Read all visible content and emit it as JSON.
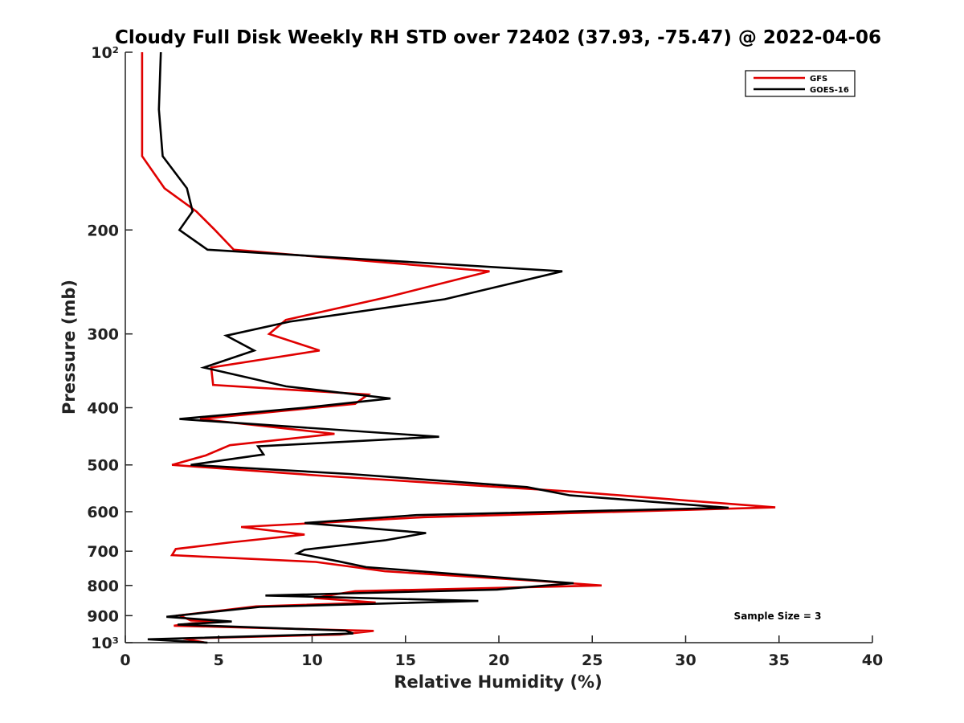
{
  "chart_data": {
    "type": "line",
    "title": "Cloudy Full Disk Weekly RH STD over 72402 (37.93, -75.47) @ 2022-04-06",
    "xlabel": "Relative Humidity (%)",
    "ylabel": "Pressure (mb)",
    "xlim": [
      0,
      40
    ],
    "ylim": [
      100,
      1000
    ],
    "y_scale": "log",
    "y_reversed": true,
    "x_ticks": [
      0,
      5,
      10,
      15,
      20,
      25,
      30,
      35,
      40
    ],
    "x_tick_labels": [
      "0",
      "5",
      "10",
      "15",
      "20",
      "25",
      "30",
      "35",
      "40"
    ],
    "y_ticks": [
      100,
      200,
      300,
      400,
      500,
      600,
      700,
      800,
      900,
      1000
    ],
    "y_tick_labels": [
      "10²",
      "200",
      "300",
      "400",
      "500",
      "600",
      "700",
      "800",
      "900",
      "10³"
    ],
    "grid": false,
    "legend_position": "top-right",
    "annotation": "Sample Size = 3",
    "series": [
      {
        "name": "GFS",
        "color": "#e00000",
        "points": [
          [
            0.9,
            100
          ],
          [
            0.9,
            125
          ],
          [
            0.9,
            150
          ],
          [
            2.1,
            170
          ],
          [
            3.8,
            186
          ],
          [
            4.8,
            200
          ],
          [
            5.8,
            216
          ],
          [
            19.5,
            235
          ],
          [
            14,
            260
          ],
          [
            8.6,
            284
          ],
          [
            7.7,
            300
          ],
          [
            10.4,
            320
          ],
          [
            4.6,
            342
          ],
          [
            4.7,
            366
          ],
          [
            13,
            380
          ],
          [
            12.3,
            394
          ],
          [
            4,
            418
          ],
          [
            11.2,
            443
          ],
          [
            5.6,
            463
          ],
          [
            4.3,
            482
          ],
          [
            2.5,
            500
          ],
          [
            10.7,
            522
          ],
          [
            24,
            555
          ],
          [
            34.8,
            590
          ],
          [
            16,
            613
          ],
          [
            6.2,
            637
          ],
          [
            9.6,
            656
          ],
          [
            5.5,
            677
          ],
          [
            2.7,
            694
          ],
          [
            2.5,
            711
          ],
          [
            10.2,
            730
          ],
          [
            13.9,
            757
          ],
          [
            22.3,
            787
          ],
          [
            25.5,
            800
          ],
          [
            12.3,
            818
          ],
          [
            10.1,
            840
          ],
          [
            13.4,
            855
          ],
          [
            7,
            868
          ],
          [
            2.9,
            899
          ],
          [
            3.5,
            917
          ],
          [
            5.3,
            921
          ],
          [
            3.6,
            927
          ],
          [
            2.6,
            936
          ],
          [
            13.3,
            955
          ],
          [
            11.5,
            969
          ],
          [
            3.1,
            984
          ],
          [
            4.3,
            1000
          ]
        ]
      },
      {
        "name": "GOES-16",
        "color": "#000000",
        "points": [
          [
            1.9,
            100
          ],
          [
            1.8,
            125
          ],
          [
            2,
            150
          ],
          [
            3.3,
            170
          ],
          [
            3.6,
            186
          ],
          [
            2.9,
            200
          ],
          [
            4.4,
            216
          ],
          [
            23.4,
            235
          ],
          [
            17.1,
            262
          ],
          [
            8.8,
            286
          ],
          [
            5.4,
            302
          ],
          [
            6.9,
            320
          ],
          [
            4.2,
            342
          ],
          [
            8.6,
            368
          ],
          [
            14.2,
            386
          ],
          [
            9.6,
            400
          ],
          [
            2.9,
            418
          ],
          [
            16.8,
            448
          ],
          [
            7.1,
            465
          ],
          [
            7.4,
            480
          ],
          [
            3.5,
            500
          ],
          [
            12,
            518
          ],
          [
            21.5,
            545
          ],
          [
            23.8,
            563
          ],
          [
            32.3,
            591
          ],
          [
            15.6,
            608
          ],
          [
            9.6,
            627
          ],
          [
            16.1,
            652
          ],
          [
            13.9,
            671
          ],
          [
            9.6,
            696
          ],
          [
            9.2,
            706
          ],
          [
            11.4,
            728
          ],
          [
            12.9,
            745
          ],
          [
            24,
            793
          ],
          [
            19.9,
            813
          ],
          [
            7.5,
            832
          ],
          [
            18.9,
            850
          ],
          [
            7.2,
            870
          ],
          [
            2.2,
            904
          ],
          [
            5.7,
            921
          ],
          [
            2.8,
            932
          ],
          [
            11.8,
            954
          ],
          [
            12.2,
            965
          ],
          [
            1.2,
            987
          ],
          [
            4.4,
            1000
          ]
        ]
      }
    ]
  }
}
